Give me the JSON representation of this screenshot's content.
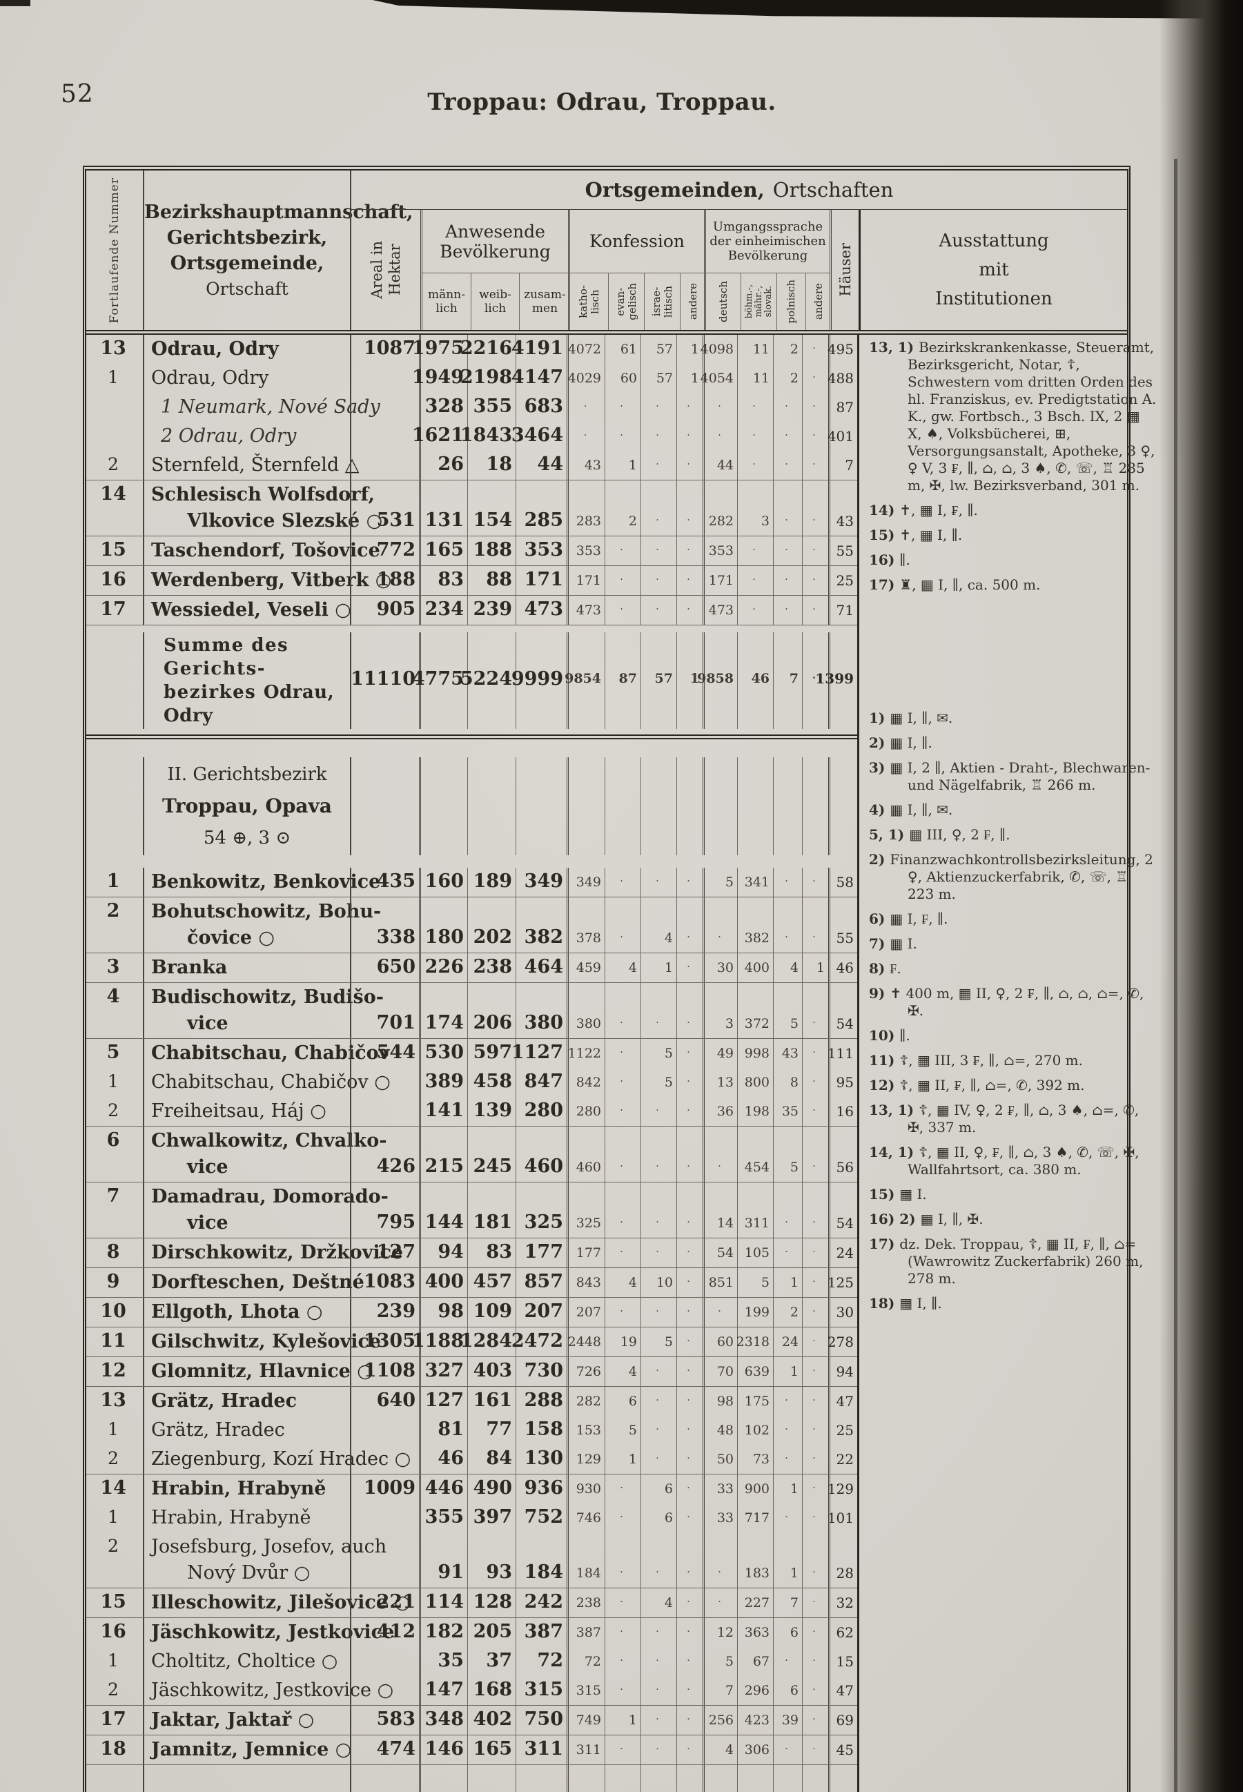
{
  "page": {
    "number": "52",
    "title": "Troppau: Odrau, Troppau."
  },
  "header": {
    "nummer": "Fortlaufende Nummer",
    "names": [
      "Bezirkshauptmannschaft,",
      "Gerichtsbezirk,",
      "Ortsgemeinde,",
      "Ortschaft"
    ],
    "og1": "Ortsgemeinden,",
    "og2": "Ortschaften",
    "areal": [
      "Areal in",
      "Hektar"
    ],
    "bev": [
      "Anwesende",
      "Bevölkerung"
    ],
    "bev_cols": [
      [
        "männ-",
        "lich"
      ],
      [
        "weib-",
        "lich"
      ],
      [
        "zusam-",
        "men"
      ]
    ],
    "konf": "Konfession",
    "konf_cols": [
      [
        "katho-",
        "lisch"
      ],
      [
        "evan-",
        "gelisch"
      ],
      [
        "israe-",
        "litisch"
      ],
      [
        "andere"
      ]
    ],
    "spr": [
      "Umgangssprache",
      "der einheimischen",
      "Bevölkerung"
    ],
    "spr_cols": [
      [
        "deutsch"
      ],
      [
        "böhm.-,",
        "mähr.-,",
        "slovak."
      ],
      [
        "polnisch"
      ],
      [
        "andere"
      ]
    ],
    "haeuser": "Häuser",
    "ausstattung": [
      "Ausstattung",
      "mit",
      "Institutionen"
    ]
  },
  "table": {
    "rows": [
      {
        "t": "row",
        "n": "13",
        "s": "b",
        "L": [
          "Odrau, Odry"
        ],
        "a": "1087",
        "m": "1975",
        "w": "2216",
        "z": "4191",
        "k": "4072",
        "e": "61",
        "i": "57",
        "x": "1",
        "d": "4098",
        "b": "11",
        "p": "2",
        "y": "·",
        "h": "495"
      },
      {
        "t": "row",
        "n": "1",
        "s": "r",
        "L": [
          "Odrau, Odry"
        ],
        "m": "1949",
        "w": "2198",
        "z": "4147",
        "k": "4029",
        "e": "60",
        "i": "57",
        "x": "1",
        "d": "4054",
        "b": "11",
        "p": "2",
        "y": "·",
        "h": "488"
      },
      {
        "t": "row",
        "s": "i",
        "L": [
          "1 Neumark, Nové Sady"
        ],
        "m": "328",
        "w": "355",
        "z": "683",
        "k": "·",
        "e": "·",
        "i": "·",
        "x": "·",
        "d": "·",
        "b": "·",
        "p": "·",
        "y": "·",
        "h": "87"
      },
      {
        "t": "row",
        "s": "i",
        "L": [
          "2 Odrau, Odry"
        ],
        "m": "1621",
        "w": "1843",
        "z": "3464",
        "k": "·",
        "e": "·",
        "i": "·",
        "x": "·",
        "d": "·",
        "b": "·",
        "p": "·",
        "y": "·",
        "h": "401"
      },
      {
        "t": "row",
        "n": "2",
        "s": "r",
        "L": [
          "Sternfeld, Šternfeld △"
        ],
        "m": "26",
        "w": "18",
        "z": "44",
        "k": "43",
        "e": "1",
        "i": "·",
        "x": "·",
        "d": "44",
        "b": "·",
        "p": "·",
        "y": "·",
        "h": "7"
      },
      {
        "t": "row",
        "sep": 1,
        "n": "14",
        "s": "b",
        "L": [
          "Schlesisch  Wolfsdorf,",
          "Vlkovice Slezské ○"
        ],
        "a": "531",
        "m": "131",
        "w": "154",
        "z": "285",
        "k": "283",
        "e": "2",
        "i": "·",
        "x": "·",
        "d": "282",
        "b": "3",
        "p": "·",
        "y": "·",
        "h": "43"
      },
      {
        "t": "row",
        "sep": 1,
        "n": "15",
        "s": "b",
        "L": [
          "Taschendorf, Tošovice"
        ],
        "a": "772",
        "m": "165",
        "w": "188",
        "z": "353",
        "k": "353",
        "e": "·",
        "i": "·",
        "x": "·",
        "d": "353",
        "b": "·",
        "p": "·",
        "y": "·",
        "h": "55"
      },
      {
        "t": "row",
        "sep": 1,
        "n": "16",
        "s": "b",
        "L": [
          "Werdenberg, Vitberk ○"
        ],
        "a": "188",
        "m": "83",
        "w": "88",
        "z": "171",
        "k": "171",
        "e": "·",
        "i": "·",
        "x": "·",
        "d": "171",
        "b": "·",
        "p": "·",
        "y": "·",
        "h": "25"
      },
      {
        "t": "row",
        "sep": 1,
        "n": "17",
        "s": "b",
        "L": [
          "Wessiedel, Veseli ○"
        ],
        "a": "905",
        "m": "234",
        "w": "239",
        "z": "473",
        "k": "473",
        "e": "·",
        "i": "·",
        "x": "·",
        "d": "473",
        "b": "·",
        "p": "·",
        "y": "·",
        "h": "71"
      },
      {
        "t": "summe",
        "L": [
          "Summe des Gerichts-",
          "bezirkes"
        ],
        "Lb": "Odrau, Odry",
        "a": "11110",
        "m": "4775",
        "w": "5224",
        "z": "9999",
        "k": "9854",
        "e": "87",
        "i": "57",
        "x": "1",
        "d": "9858",
        "b": "46",
        "p": "7",
        "y": "·",
        "h": "1399"
      },
      {
        "t": "section",
        "L": [
          "II. Gerichtsbezirk",
          "Troppau, Opava",
          "54 ⊕, 3 ⊙"
        ]
      },
      {
        "t": "row",
        "n": "1",
        "s": "b",
        "L": [
          "Benkowitz, Benkovice"
        ],
        "a": "435",
        "m": "160",
        "w": "189",
        "z": "349",
        "k": "349",
        "e": "·",
        "i": "·",
        "x": "·",
        "d": "5",
        "b": "341",
        "p": "·",
        "y": "·",
        "h": "58"
      },
      {
        "t": "row",
        "sep": 1,
        "n": "2",
        "s": "b",
        "L": [
          "Bohutschowitz,  Bohu-",
          "čovice ○"
        ],
        "a": "338",
        "m": "180",
        "w": "202",
        "z": "382",
        "k": "378",
        "e": "·",
        "i": "4",
        "x": "·",
        "d": "·",
        "b": "382",
        "p": "·",
        "y": "·",
        "h": "55"
      },
      {
        "t": "row",
        "sep": 1,
        "n": "3",
        "s": "b",
        "L": [
          "Branka"
        ],
        "a": "650",
        "m": "226",
        "w": "238",
        "z": "464",
        "k": "459",
        "e": "4",
        "i": "1",
        "x": "·",
        "d": "30",
        "b": "400",
        "p": "4",
        "y": "1",
        "h": "46"
      },
      {
        "t": "row",
        "sep": 1,
        "n": "4",
        "s": "b",
        "L": [
          "Budischowitz,  Budišo-",
          "vice"
        ],
        "a": "701",
        "m": "174",
        "w": "206",
        "z": "380",
        "k": "380",
        "e": "·",
        "i": "·",
        "x": "·",
        "d": "3",
        "b": "372",
        "p": "5",
        "y": "·",
        "h": "54"
      },
      {
        "t": "row",
        "sep": 1,
        "n": "5",
        "s": "b",
        "L": [
          "Chabitschau, Chabičov"
        ],
        "a": "544",
        "m": "530",
        "w": "597",
        "z": "1127",
        "k": "1122",
        "e": "·",
        "i": "5",
        "x": "·",
        "d": "49",
        "b": "998",
        "p": "43",
        "y": "·",
        "h": "111"
      },
      {
        "t": "row",
        "n": "1",
        "s": "r",
        "L": [
          "Chabitschau, Chabičov ○"
        ],
        "m": "389",
        "w": "458",
        "z": "847",
        "k": "842",
        "e": "·",
        "i": "5",
        "x": "·",
        "d": "13",
        "b": "800",
        "p": "8",
        "y": "·",
        "h": "95"
      },
      {
        "t": "row",
        "n": "2",
        "s": "r",
        "L": [
          "Freiheitsau, Háj ○"
        ],
        "m": "141",
        "w": "139",
        "z": "280",
        "k": "280",
        "e": "·",
        "i": "·",
        "x": "·",
        "d": "36",
        "b": "198",
        "p": "35",
        "y": "·",
        "h": "16"
      },
      {
        "t": "row",
        "sep": 1,
        "n": "6",
        "s": "b",
        "L": [
          "Chwalkowitz,  Chvalko-",
          "vice"
        ],
        "a": "426",
        "m": "215",
        "w": "245",
        "z": "460",
        "k": "460",
        "e": "·",
        "i": "·",
        "x": "·",
        "d": "·",
        "b": "454",
        "p": "5",
        "y": "·",
        "h": "56"
      },
      {
        "t": "row",
        "sep": 1,
        "n": "7",
        "s": "b",
        "L": [
          "Damadrau,  Domorado-",
          "vice"
        ],
        "a": "795",
        "m": "144",
        "w": "181",
        "z": "325",
        "k": "325",
        "e": "·",
        "i": "·",
        "x": "·",
        "d": "14",
        "b": "311",
        "p": "·",
        "y": "·",
        "h": "54"
      },
      {
        "t": "row",
        "sep": 1,
        "n": "8",
        "s": "b",
        "L": [
          "Dirschkowitz, Držkovice"
        ],
        "a": "127",
        "m": "94",
        "w": "83",
        "z": "177",
        "k": "177",
        "e": "·",
        "i": "·",
        "x": "·",
        "d": "54",
        "b": "105",
        "p": "·",
        "y": "·",
        "h": "24"
      },
      {
        "t": "row",
        "sep": 1,
        "n": "9",
        "s": "b",
        "L": [
          "Dorfteschen, Deštné"
        ],
        "a": "1083",
        "m": "400",
        "w": "457",
        "z": "857",
        "k": "843",
        "e": "4",
        "i": "10",
        "x": "·",
        "d": "851",
        "b": "5",
        "p": "1",
        "y": "·",
        "h": "125"
      },
      {
        "t": "row",
        "sep": 1,
        "n": "10",
        "s": "b",
        "L": [
          "Ellgoth, Lhota ○"
        ],
        "a": "239",
        "m": "98",
        "w": "109",
        "z": "207",
        "k": "207",
        "e": "·",
        "i": "·",
        "x": "·",
        "d": "·",
        "b": "199",
        "p": "2",
        "y": "·",
        "h": "30"
      },
      {
        "t": "row",
        "sep": 1,
        "n": "11",
        "s": "b",
        "L": [
          "Gilschwitz, Kylešovice"
        ],
        "a": "1305",
        "m": "1188",
        "w": "1284",
        "z": "2472",
        "k": "2448",
        "e": "19",
        "i": "5",
        "x": "·",
        "d": "60",
        "b": "2318",
        "p": "24",
        "y": "·",
        "h": "278"
      },
      {
        "t": "row",
        "sep": 1,
        "n": "12",
        "s": "b",
        "L": [
          "Glomnitz, Hlavnice ○"
        ],
        "a": "1108",
        "m": "327",
        "w": "403",
        "z": "730",
        "k": "726",
        "e": "4",
        "i": "·",
        "x": "·",
        "d": "70",
        "b": "639",
        "p": "1",
        "y": "·",
        "h": "94"
      },
      {
        "t": "row",
        "sep": 1,
        "n": "13",
        "s": "b",
        "L": [
          "Grätz, Hradec"
        ],
        "a": "640",
        "m": "127",
        "w": "161",
        "z": "288",
        "k": "282",
        "e": "6",
        "i": "·",
        "x": "·",
        "d": "98",
        "b": "175",
        "p": "·",
        "y": "·",
        "h": "47"
      },
      {
        "t": "row",
        "n": "1",
        "s": "r",
        "L": [
          "Grätz, Hradec"
        ],
        "m": "81",
        "w": "77",
        "z": "158",
        "k": "153",
        "e": "5",
        "i": "·",
        "x": "·",
        "d": "48",
        "b": "102",
        "p": "·",
        "y": "·",
        "h": "25"
      },
      {
        "t": "row",
        "n": "2",
        "s": "r",
        "L": [
          "Ziegenburg, Kozí Hradec ○"
        ],
        "m": "46",
        "w": "84",
        "z": "130",
        "k": "129",
        "e": "1",
        "i": "·",
        "x": "·",
        "d": "50",
        "b": "73",
        "p": "·",
        "y": "·",
        "h": "22"
      },
      {
        "t": "row",
        "sep": 1,
        "n": "14",
        "s": "b",
        "L": [
          "Hrabin, Hrabyně"
        ],
        "a": "1009",
        "m": "446",
        "w": "490",
        "z": "936",
        "k": "930",
        "e": "·",
        "i": "6",
        "x": "·",
        "d": "33",
        "b": "900",
        "p": "1",
        "y": "·",
        "h": "129"
      },
      {
        "t": "row",
        "n": "1",
        "s": "r",
        "L": [
          "Hrabin, Hrabyně"
        ],
        "m": "355",
        "w": "397",
        "z": "752",
        "k": "746",
        "e": "·",
        "i": "6",
        "x": "·",
        "d": "33",
        "b": "717",
        "p": "·",
        "y": "·",
        "h": "101"
      },
      {
        "t": "row",
        "n": "2",
        "s": "r",
        "L": [
          "Josefsburg, Josefov, auch",
          "Nový Dvůr ○"
        ],
        "m": "91",
        "w": "93",
        "z": "184",
        "k": "184",
        "e": "·",
        "i": "·",
        "x": "·",
        "d": "·",
        "b": "183",
        "p": "1",
        "y": "·",
        "h": "28"
      },
      {
        "t": "row",
        "sep": 1,
        "n": "15",
        "s": "b",
        "L": [
          "Illeschowitz, Jilešovice ○"
        ],
        "a": "221",
        "m": "114",
        "w": "128",
        "z": "242",
        "k": "238",
        "e": "·",
        "i": "4",
        "x": "·",
        "d": "·",
        "b": "227",
        "p": "7",
        "y": "·",
        "h": "32"
      },
      {
        "t": "row",
        "sep": 1,
        "n": "16",
        "s": "b",
        "L": [
          "Jäschkowitz, Jestkovice"
        ],
        "a": "412",
        "m": "182",
        "w": "205",
        "z": "387",
        "k": "387",
        "e": "·",
        "i": "·",
        "x": "·",
        "d": "12",
        "b": "363",
        "p": "6",
        "y": "·",
        "h": "62"
      },
      {
        "t": "row",
        "n": "1",
        "s": "r",
        "L": [
          "Choltitz, Choltice ○"
        ],
        "m": "35",
        "w": "37",
        "z": "72",
        "k": "72",
        "e": "·",
        "i": "·",
        "x": "·",
        "d": "5",
        "b": "67",
        "p": "·",
        "y": "·",
        "h": "15"
      },
      {
        "t": "row",
        "n": "2",
        "s": "r",
        "L": [
          "Jäschkowitz, Jestkovice ○"
        ],
        "m": "147",
        "w": "168",
        "z": "315",
        "k": "315",
        "e": "·",
        "i": "·",
        "x": "·",
        "d": "7",
        "b": "296",
        "p": "6",
        "y": "·",
        "h": "47"
      },
      {
        "t": "row",
        "sep": 1,
        "n": "17",
        "s": "b",
        "L": [
          "Jaktar, Jaktař ○"
        ],
        "a": "583",
        "m": "348",
        "w": "402",
        "z": "750",
        "k": "749",
        "e": "1",
        "i": "·",
        "x": "·",
        "d": "256",
        "b": "423",
        "p": "39",
        "y": "·",
        "h": "69"
      },
      {
        "t": "row",
        "sep": 1,
        "n": "18",
        "s": "b",
        "L": [
          "Jamnitz, Jemnice ○"
        ],
        "a": "474",
        "m": "146",
        "w": "165",
        "z": "311",
        "k": "311",
        "e": "·",
        "i": "·",
        "x": "·",
        "d": "4",
        "b": "306",
        "p": "·",
        "y": "·",
        "h": "45"
      },
      {
        "t": "end"
      }
    ]
  },
  "notes": {
    "odrau": [
      {
        "label": "13, 1)",
        "text": "Bezirkskrankenkasse, Steueramt, Bezirksgericht, Notar, ☦, Schwestern vom dritten Orden des hl. Franziskus, ev. Predigtstation A. K., gw. Fortbsch., 3 Bsch. IX, 2 ▦ X, ♠, Volksbücherei, ⊞, Versorgungsanstalt, Apotheke, 3 ♀, ♀ V, 3 ₣, ∥, ⌂, ⌂, 3 ♠, ✆, ☏, ♖ 285 m, ✠, lw. Bezirksverband, 301 m."
      },
      {
        "label": "14)",
        "text": "✝, ▦ I, ₣, ∥."
      },
      {
        "label": "15)",
        "text": "✝, ▦ I, ∥."
      },
      {
        "label": "16)",
        "text": "∥."
      },
      {
        "label": "17)",
        "text": "♜, ▦ I, ∥, ca. 500 m."
      }
    ],
    "troppau": [
      {
        "label": "1)",
        "text": "▦ I, ∥, ✉."
      },
      {
        "label": "2)",
        "text": "▦ I, ∥."
      },
      {
        "label": "3)",
        "text": "▦ I, 2 ∥, Aktien - Draht-, Blechwaren- und Nägelfabrik, ♖ 266 m."
      },
      {
        "label": "4)",
        "text": "▦ I, ∥, ✉."
      },
      {
        "label": "5, 1)",
        "text": "▦ III, ♀, 2 ₣, ∥."
      },
      {
        "label": "2)",
        "text": "Finanzwachkontrollsbezirksleitung, 2 ♀, Aktienzuckerfabrik, ✆, ☏, ♖ 223 m."
      },
      {
        "label": "6)",
        "text": "▦ I, ₣, ∥."
      },
      {
        "label": "7)",
        "text": "▦ I."
      },
      {
        "label": "8)",
        "text": "₣."
      },
      {
        "label": "9)",
        "text": "✝ 400 m, ▦ II, ♀, 2 ₣, ∥, ⌂, ⌂, ⌂=, ✆, ✠."
      },
      {
        "label": "10)",
        "text": "∥."
      },
      {
        "label": "11)",
        "text": "☦, ▦ III, 3 ₣, ∥, ⌂=, 270 m."
      },
      {
        "label": "12)",
        "text": "☦, ▦ II, ₣, ∥, ⌂=, ✆, 392 m."
      },
      {
        "label": "13, 1)",
        "text": "☦, ▦ IV, ♀, 2 ₣, ∥, ⌂, 3 ♠, ⌂=, ✆, ✠, 337 m."
      },
      {
        "label": "14, 1)",
        "text": "☦, ▦ II, ♀, ₣, ∥, ⌂, 3 ♠, ✆, ☏, ✠, Wallfahrtsort, ca. 380 m."
      },
      {
        "label": "15)",
        "text": "▦ I."
      },
      {
        "label": "16) 2)",
        "text": "▦ I, ∥, ✠."
      },
      {
        "label": "17)",
        "text": "dz. Dek. Troppau, ☦, ▦ II, ₣, ∥, ⌂= (Wawrowitz Zuckerfabrik) 260 m, 278 m."
      },
      {
        "label": "18)",
        "text": "▦ I, ∥."
      }
    ]
  }
}
